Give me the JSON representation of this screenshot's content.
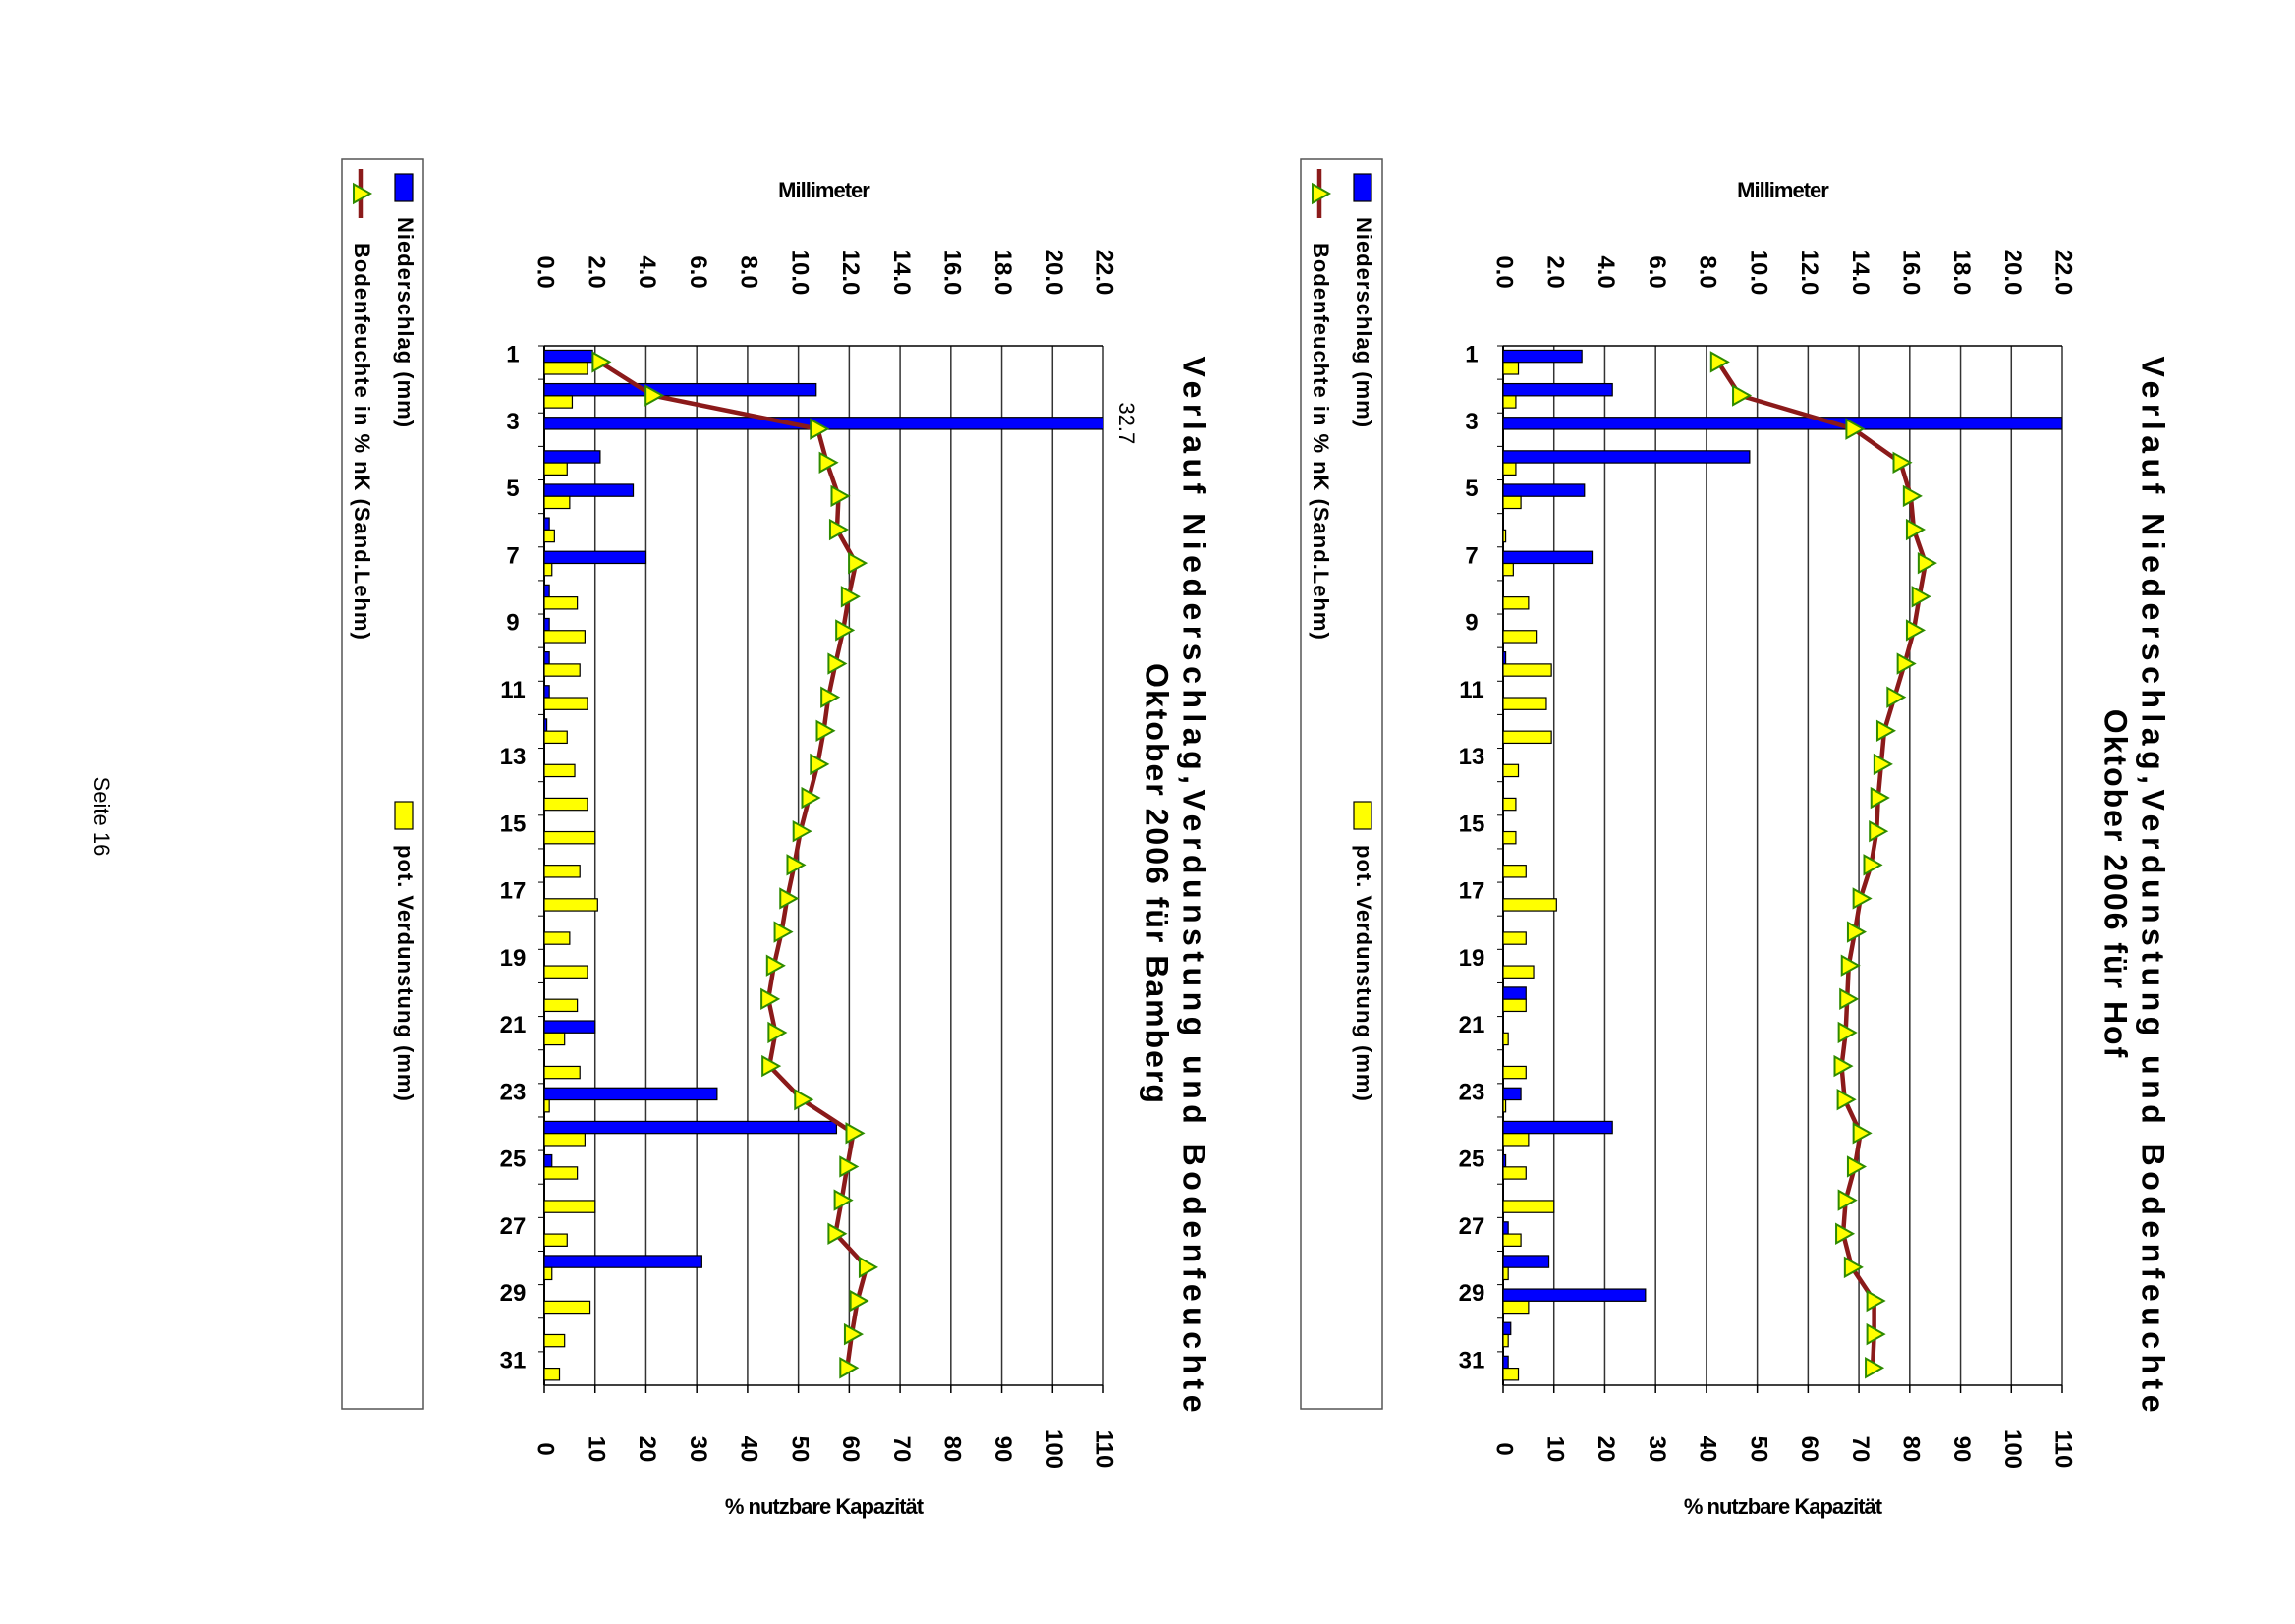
{
  "footer": "Seite 16",
  "chart_data": [
    {
      "type": "bar",
      "title": "Verlauf Niederschlag,Verdunstung und Bodenfeuchte",
      "subtitle": "Oktober 2006 für Hof",
      "y_label": "Millimeter",
      "y2_label": "% nutzbare Kapazität",
      "categories": [
        1,
        null,
        3,
        null,
        5,
        null,
        7,
        null,
        9,
        null,
        11,
        null,
        13,
        null,
        15,
        null,
        17,
        null,
        19,
        null,
        21,
        null,
        23,
        null,
        25,
        null,
        27,
        null,
        29,
        null,
        31
      ],
      "series": [
        {
          "name": "Niederschlag (mm)",
          "color": "#0000ff",
          "values": [
            3.1,
            4.3,
            22.0,
            9.7,
            3.2,
            0,
            3.5,
            0,
            0,
            0.1,
            0,
            0,
            0,
            0,
            0,
            0,
            0,
            0,
            0,
            0.9,
            0,
            0,
            0.7,
            4.3,
            0.1,
            0,
            0.2,
            1.8,
            5.6,
            0.3,
            0.2
          ]
        },
        {
          "name": "pot. Verdunstung (mm)",
          "color": "#ffff00",
          "values": [
            0.6,
            0.5,
            0,
            0.5,
            0.7,
            0.1,
            0.4,
            1.0,
            1.3,
            1.9,
            1.7,
            1.9,
            0.6,
            0.5,
            0.5,
            0.9,
            2.1,
            0.9,
            1.2,
            0.9,
            0.2,
            0.9,
            0.1,
            1.0,
            0.9,
            2.0,
            0.7,
            0.2,
            1.0,
            0.2,
            0.6
          ]
        },
        {
          "name": "Bodenfeuchte in % nK (Sand.Lehm)",
          "type": "line",
          "axis": "y2",
          "color": "#8b1a1a",
          "marker_color": "#ffff00",
          "values": [
            42.3,
            46.6,
            68.9,
            78.2,
            80.2,
            80.8,
            83.1,
            81.9,
            80.8,
            79.0,
            77.0,
            75.0,
            74.4,
            73.8,
            73.5,
            72.4,
            70.3,
            69.2,
            68.0,
            67.7,
            67.4,
            66.6,
            67.2,
            70.3,
            69.2,
            67.4,
            66.9,
            68.6,
            73.0,
            73.0,
            72.7
          ]
        }
      ],
      "ylim": [
        0,
        22
      ],
      "yticks": [
        {
          "value": 0,
          "label": "0.0"
        },
        {
          "value": 2,
          "label": "2.0"
        },
        {
          "value": 4,
          "label": "4.0"
        },
        {
          "value": 6,
          "label": "6.0"
        },
        {
          "value": 8,
          "label": "8.0"
        },
        {
          "value": 10,
          "label": "10.0"
        },
        {
          "value": 12,
          "label": "12.0"
        },
        {
          "value": 14,
          "label": "14.0"
        },
        {
          "value": 16,
          "label": "16.0"
        },
        {
          "value": 18,
          "label": "18.0"
        },
        {
          "value": 20,
          "label": "20.0"
        },
        {
          "value": 22,
          "label": "22.0"
        }
      ],
      "y2lim": [
        0,
        110
      ],
      "y2ticks": [
        0,
        10,
        20,
        30,
        40,
        50,
        60,
        70,
        80,
        90,
        100,
        110
      ],
      "grid": true
    },
    {
      "type": "bar",
      "title": "Verlauf Niederschlag,Verdunstung und Bodenfeuchte",
      "subtitle": "Oktober 2006 für Bamberg",
      "y_label": "Millimeter",
      "y2_label": "% nutzbare Kapazität",
      "categories": [
        1,
        null,
        3,
        null,
        5,
        null,
        7,
        null,
        9,
        null,
        11,
        null,
        13,
        null,
        15,
        null,
        17,
        null,
        19,
        null,
        21,
        null,
        23,
        null,
        25,
        null,
        27,
        null,
        29,
        null,
        31
      ],
      "series": [
        {
          "name": "Niederschlag (mm)",
          "color": "#0000ff",
          "values": [
            1.9,
            10.7,
            32.7,
            2.2,
            3.5,
            0.2,
            4.0,
            0.2,
            0.2,
            0.2,
            0.2,
            0.1,
            0,
            0,
            0,
            0,
            0,
            0,
            0,
            0,
            2.0,
            0,
            6.8,
            11.5,
            0.3,
            0,
            0,
            6.2,
            0,
            0,
            0
          ]
        },
        {
          "name": "pot. Verdunstung (mm)",
          "color": "#ffff00",
          "values": [
            1.7,
            1.1,
            0,
            0.9,
            1.0,
            0.4,
            0.3,
            1.3,
            1.6,
            1.4,
            1.7,
            0.9,
            1.2,
            1.7,
            2.0,
            1.4,
            2.1,
            1.0,
            1.7,
            1.3,
            0.8,
            1.4,
            0.2,
            1.6,
            1.3,
            2.0,
            0.9,
            0.3,
            1.8,
            0.8,
            0.6
          ]
        },
        {
          "name": "Bodenfeuchte in % nK (Sand.Lehm)",
          "type": "line",
          "axis": "y2",
          "color": "#8b1a1a",
          "marker_color": "#ffff00",
          "values": [
            10.9,
            21.3,
            53.8,
            55.6,
            57.9,
            57.6,
            61.3,
            59.9,
            58.8,
            57.3,
            55.9,
            55.0,
            53.8,
            52.1,
            50.4,
            49.2,
            47.8,
            46.7,
            45.2,
            44.1,
            45.5,
            44.3,
            50.7,
            60.8,
            59.6,
            58.5,
            57.3,
            63.4,
            61.6,
            60.5,
            59.6
          ]
        }
      ],
      "ylim": [
        0,
        22
      ],
      "yticks": [
        {
          "value": 0,
          "label": "0.0"
        },
        {
          "value": 2,
          "label": "2.0"
        },
        {
          "value": 4,
          "label": "4.0"
        },
        {
          "value": 6,
          "label": "6.0"
        },
        {
          "value": 8,
          "label": "8.0"
        },
        {
          "value": 10,
          "label": "10.0"
        },
        {
          "value": 12,
          "label": "12.0"
        },
        {
          "value": 14,
          "label": "14.0"
        },
        {
          "value": 16,
          "label": "16.0"
        },
        {
          "value": 18,
          "label": "18.0"
        },
        {
          "value": 20,
          "label": "20.0"
        },
        {
          "value": 22,
          "label": "22.0"
        }
      ],
      "y2lim": [
        0,
        110
      ],
      "y2ticks": [
        0,
        10,
        20,
        30,
        40,
        50,
        60,
        70,
        80,
        90,
        100,
        110
      ],
      "grid": true
    }
  ]
}
